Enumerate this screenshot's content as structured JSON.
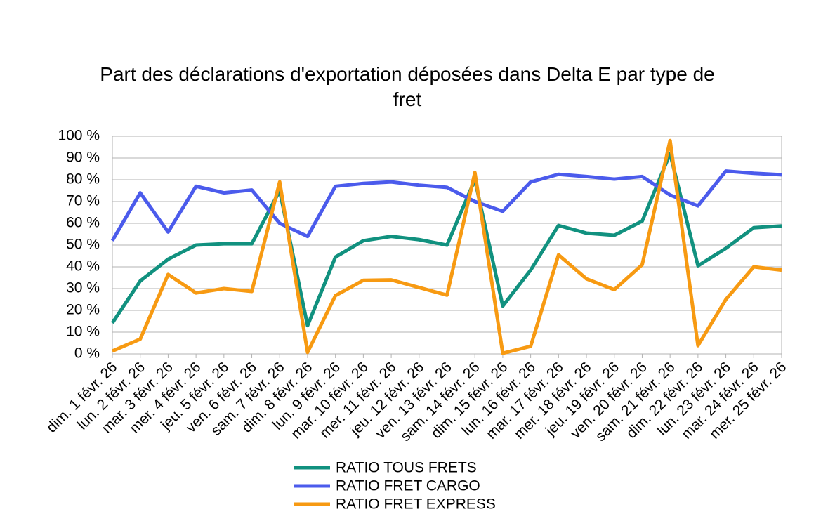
{
  "chart_data": {
    "type": "line",
    "title": "Part des déclarations d'exportation déposées dans Delta E par type de fret",
    "categories": [
      "dim. 1 févr. 26",
      "lun. 2 févr. 26",
      "mar. 3 févr. 26",
      "mer. 4 févr. 26",
      "jeu. 5 févr. 26",
      "ven. 6 févr. 26",
      "sam. 7 févr. 26",
      "dim. 8 févr. 26",
      "lun. 9 févr. 26",
      "mar. 10 févr. 26",
      "mer. 11 févr. 26",
      "jeu. 12 févr. 26",
      "ven. 13 févr. 26",
      "sam. 14 févr. 26",
      "dim. 15 févr. 26",
      "lun. 16 févr. 26",
      "mar. 17 févr. 26",
      "mer. 18 févr. 26",
      "jeu. 19 févr. 26",
      "ven. 20 févr. 26",
      "sam. 21 févr. 26",
      "dim. 22 févr. 26",
      "lun. 23 févr. 26",
      "mar. 24 févr. 26",
      "mer. 25 févr. 26"
    ],
    "series": [
      {
        "name": "RATIO TOUS FRETS",
        "color": "#11917f",
        "values": [
          14.2,
          33.5,
          43.5,
          50,
          50.6,
          50.6,
          75,
          13,
          44.5,
          52,
          54,
          52.5,
          50,
          80,
          22,
          38.5,
          59,
          55.5,
          54.5,
          61,
          92,
          40.5,
          48.5,
          58,
          58.8
        ]
      },
      {
        "name": "RATIO FRET CARGO",
        "color": "#4b5bec",
        "values": [
          52,
          74,
          56,
          77,
          74,
          75.3,
          60,
          54,
          77,
          78.3,
          79,
          77.5,
          76.5,
          70,
          65.5,
          79,
          82.5,
          81.5,
          80.3,
          81.5,
          73,
          68,
          84,
          83,
          82.3
        ]
      },
      {
        "name": "RATIO FRET EXPRESS",
        "color": "#f79a12",
        "values": [
          1.3,
          6.8,
          36.5,
          28,
          30,
          28.7,
          79,
          0.7,
          26.8,
          33.8,
          34,
          30.5,
          27,
          83.3,
          0.3,
          3.5,
          45.5,
          34.5,
          29.5,
          41,
          98,
          3.8,
          25,
          40,
          38.5
        ]
      }
    ],
    "ylim": [
      0,
      100
    ],
    "yticks": [
      {
        "value": 0,
        "label": "0 %"
      },
      {
        "value": 10,
        "label": "10 %"
      },
      {
        "value": 20,
        "label": "20 %"
      },
      {
        "value": 30,
        "label": "30 %"
      },
      {
        "value": 40,
        "label": "40 %"
      },
      {
        "value": 50,
        "label": "50 %"
      },
      {
        "value": 60,
        "label": "60 %"
      },
      {
        "value": 70,
        "label": "70 %"
      },
      {
        "value": 80,
        "label": "80 %"
      },
      {
        "value": 90,
        "label": "90 %"
      },
      {
        "value": 100,
        "label": "100 %"
      }
    ],
    "grid": true,
    "legend": "bottom"
  }
}
